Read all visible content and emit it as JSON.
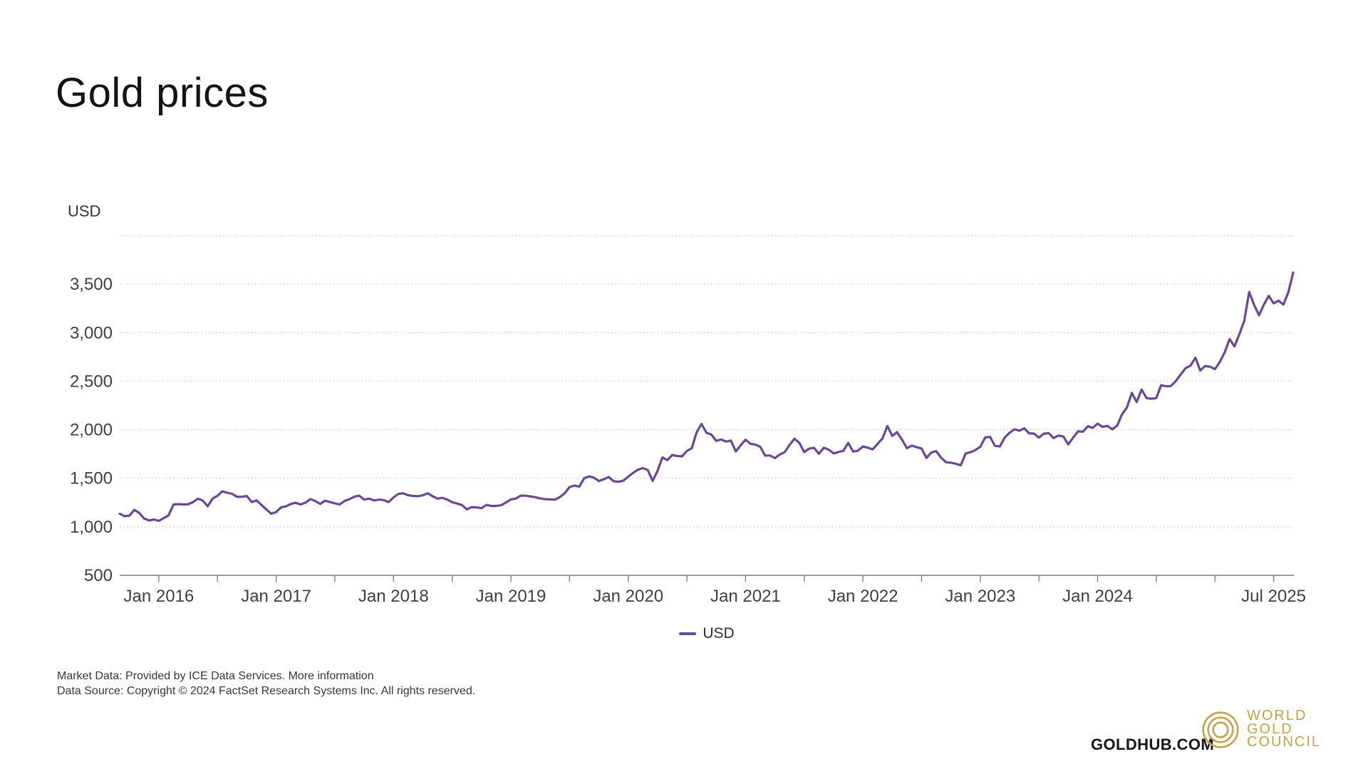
{
  "header": {
    "title": "Gold prices"
  },
  "chart": {
    "axis_unit": "USD",
    "legend": {
      "label": "USD",
      "color": "#6C4796"
    }
  },
  "footer": {
    "line1_text": "Market Data: Provided by ICE Data Services. ",
    "line1_link": "More information",
    "line2_text": "Data Source: Copyright © 2024 FactSet Research Systems Inc. All rights reserved."
  },
  "branding": {
    "site": "GOLDHUB.COM",
    "logo_lines": [
      "WORLD",
      "GOLD",
      "COUNCIL"
    ],
    "logo_color": "#C5A34A"
  },
  "chart_data": {
    "type": "line",
    "title": "Gold prices",
    "ylabel": "USD",
    "xlabel": "",
    "grid": "horizontal-dotted",
    "legend_position": "bottom-center",
    "ylim": [
      500,
      4000
    ],
    "y_ticks": [
      500,
      1000,
      1500,
      2000,
      2500,
      3000,
      3500
    ],
    "y_tick_labels": [
      "500",
      "1,000",
      "1,500",
      "2,000",
      "2,500",
      "3,000",
      "3,500"
    ],
    "x_ticks": [
      {
        "label": "Jan 2016",
        "year": 2016,
        "month": 1
      },
      {
        "label": "",
        "year": 2016,
        "month": 7
      },
      {
        "label": "Jan 2017",
        "year": 2017,
        "month": 1
      },
      {
        "label": "",
        "year": 2017,
        "month": 7
      },
      {
        "label": "Jan 2018",
        "year": 2018,
        "month": 1
      },
      {
        "label": "",
        "year": 2018,
        "month": 7
      },
      {
        "label": "Jan 2019",
        "year": 2019,
        "month": 1
      },
      {
        "label": "",
        "year": 2019,
        "month": 7
      },
      {
        "label": "Jan 2020",
        "year": 2020,
        "month": 1
      },
      {
        "label": "",
        "year": 2020,
        "month": 7
      },
      {
        "label": "Jan 2021",
        "year": 2021,
        "month": 1
      },
      {
        "label": "",
        "year": 2021,
        "month": 7
      },
      {
        "label": "Jan 2022",
        "year": 2022,
        "month": 1
      },
      {
        "label": "",
        "year": 2022,
        "month": 7
      },
      {
        "label": "Jan 2023",
        "year": 2023,
        "month": 1
      },
      {
        "label": "",
        "year": 2023,
        "month": 7
      },
      {
        "label": "Jan 2024",
        "year": 2024,
        "month": 1
      },
      {
        "label": "",
        "year": 2024,
        "month": 7
      },
      {
        "label": "",
        "year": 2025,
        "month": 1
      },
      {
        "label": "Jul 2025",
        "year": 2025,
        "month": 7
      }
    ],
    "series": [
      {
        "name": "USD",
        "color": "#6C4796",
        "start": "2015-09-01",
        "points_per_year": 24,
        "values": [
          1135,
          1110,
          1115,
          1175,
          1142,
          1085,
          1065,
          1075,
          1061,
          1090,
          1118,
          1230,
          1234,
          1230,
          1233,
          1255,
          1290,
          1270,
          1212,
          1290,
          1320,
          1365,
          1351,
          1340,
          1309,
          1310,
          1317,
          1255,
          1272,
          1225,
          1178,
          1135,
          1152,
          1200,
          1210,
          1235,
          1248,
          1230,
          1249,
          1285,
          1266,
          1235,
          1269,
          1255,
          1242,
          1230,
          1267,
          1285,
          1311,
          1320,
          1280,
          1290,
          1271,
          1280,
          1275,
          1255,
          1303,
          1340,
          1345,
          1325,
          1318,
          1315,
          1325,
          1345,
          1315,
          1290,
          1298,
          1280,
          1253,
          1240,
          1224,
          1180,
          1202,
          1200,
          1192,
          1225,
          1215,
          1215,
          1222,
          1250,
          1282,
          1290,
          1321,
          1320,
          1313,
          1305,
          1292,
          1285,
          1283,
          1280,
          1306,
          1345,
          1409,
          1425,
          1414,
          1500,
          1520,
          1505,
          1472,
          1490,
          1513,
          1470,
          1464,
          1475,
          1517,
          1555,
          1589,
          1605,
          1586,
          1474,
          1577,
          1715,
          1687,
          1740,
          1730,
          1725,
          1781,
          1810,
          1976,
          2060,
          1968,
          1950,
          1886,
          1900,
          1879,
          1888,
          1777,
          1840,
          1898,
          1855,
          1848,
          1825,
          1734,
          1735,
          1708,
          1745,
          1769,
          1845,
          1907,
          1865,
          1770,
          1805,
          1814,
          1752,
          1814,
          1795,
          1757,
          1770,
          1783,
          1865,
          1775,
          1785,
          1829,
          1815,
          1797,
          1855,
          1909,
          2039,
          1937,
          1975,
          1897,
          1810,
          1837,
          1820,
          1807,
          1710,
          1766,
          1780,
          1712,
          1665,
          1661,
          1650,
          1634,
          1755,
          1769,
          1790,
          1824,
          1920,
          1928,
          1835,
          1827,
          1920,
          1969,
          2005,
          1990,
          2015,
          1963,
          1960,
          1919,
          1960,
          1965,
          1915,
          1940,
          1930,
          1849,
          1920,
          1984,
          1980,
          2036,
          2020,
          2063,
          2030,
          2040,
          2005,
          2044,
          2160,
          2230,
          2380,
          2286,
          2415,
          2327,
          2320,
          2327,
          2460,
          2448,
          2450,
          2503,
          2570,
          2635,
          2660,
          2744,
          2610,
          2657,
          2650,
          2625,
          2700,
          2798,
          2935,
          2858,
          2985,
          3124,
          3420,
          3289,
          3180,
          3289,
          3380,
          3303,
          3330,
          3290,
          3415,
          3620
        ]
      }
    ]
  }
}
